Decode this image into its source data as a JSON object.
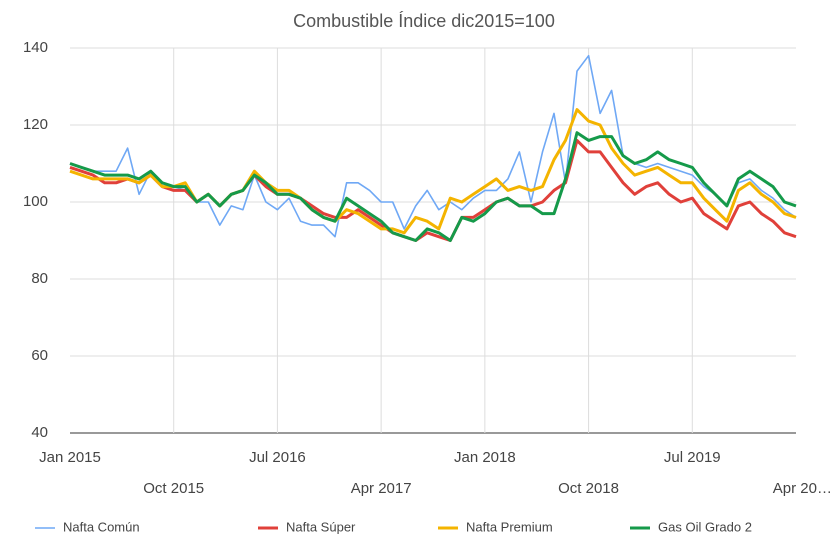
{
  "chart_data": {
    "type": "line",
    "title": "Combustible Índice dic2015=100",
    "categories": [
      "Jan 2015",
      null,
      null,
      null,
      null,
      null,
      null,
      null,
      null,
      "Oct 2015",
      null,
      null,
      null,
      null,
      null,
      null,
      null,
      null,
      "Jul 2016",
      null,
      null,
      null,
      null,
      null,
      null,
      null,
      null,
      "Apr 2017",
      null,
      null,
      null,
      null,
      null,
      null,
      null,
      null,
      "Jan 2018",
      null,
      null,
      null,
      null,
      null,
      null,
      null,
      null,
      "Oct 2018",
      null,
      null,
      null,
      null,
      null,
      null,
      null,
      null,
      "Jul 2019",
      null,
      null,
      null,
      null,
      null,
      null,
      null,
      null,
      "Apr 20…"
    ],
    "series": [
      {
        "name": "Nafta Común",
        "color": "#6fa8f5",
        "values": [
          110,
          109,
          108,
          108,
          108,
          114,
          102,
          108,
          105,
          104,
          103,
          100,
          100,
          94,
          99,
          98,
          107,
          100,
          98,
          101,
          95,
          94,
          94,
          91,
          105,
          105,
          103,
          100,
          100,
          93,
          99,
          103,
          98,
          100,
          98,
          101,
          103,
          103,
          106,
          113,
          100,
          113,
          123,
          105,
          134,
          138,
          123,
          129,
          112,
          110,
          109,
          110,
          109,
          108,
          107,
          104,
          102,
          99,
          105,
          106,
          103,
          101,
          98,
          96
        ]
      },
      {
        "name": "Nafta Súper",
        "color": "#e0403a",
        "values": [
          109,
          108,
          107,
          105,
          105,
          106,
          105,
          107,
          104,
          103,
          103,
          100,
          102,
          99,
          102,
          103,
          107,
          104,
          102,
          102,
          101,
          99,
          97,
          96,
          96,
          98,
          96,
          94,
          92,
          91,
          90,
          92,
          91,
          90,
          96,
          96,
          98,
          100,
          101,
          99,
          99,
          100,
          103,
          105,
          116,
          113,
          113,
          109,
          105,
          102,
          104,
          105,
          102,
          100,
          101,
          97,
          95,
          93,
          99,
          100,
          97,
          95,
          92,
          91
        ]
      },
      {
        "name": "Nafta Premium",
        "color": "#f4b400",
        "values": [
          108,
          107,
          106,
          106,
          106,
          106,
          105,
          107,
          104,
          104,
          105,
          100,
          102,
          99,
          102,
          103,
          108,
          105,
          103,
          103,
          101,
          98,
          96,
          95,
          98,
          97,
          95,
          93,
          93,
          92,
          96,
          95,
          93,
          101,
          100,
          102,
          104,
          106,
          103,
          104,
          103,
          104,
          111,
          116,
          124,
          121,
          120,
          114,
          110,
          107,
          108,
          109,
          107,
          105,
          105,
          101,
          98,
          95,
          103,
          105,
          102,
          100,
          97,
          96
        ]
      },
      {
        "name": "Gas Oil Grado 2",
        "color": "#159a4a",
        "values": [
          110,
          109,
          108,
          107,
          107,
          107,
          106,
          108,
          105,
          104,
          104,
          100,
          102,
          99,
          102,
          103,
          107,
          105,
          102,
          102,
          101,
          98,
          96,
          95,
          101,
          99,
          97,
          95,
          92,
          91,
          90,
          93,
          92,
          90,
          96,
          95,
          97,
          100,
          101,
          99,
          99,
          97,
          97,
          106,
          118,
          116,
          117,
          117,
          112,
          110,
          111,
          113,
          111,
          110,
          109,
          105,
          102,
          99,
          106,
          108,
          106,
          104,
          100,
          99
        ]
      }
    ],
    "ylim": [
      40,
      140
    ],
    "yticks": [
      40,
      60,
      80,
      100,
      120,
      140
    ],
    "grid": true
  }
}
